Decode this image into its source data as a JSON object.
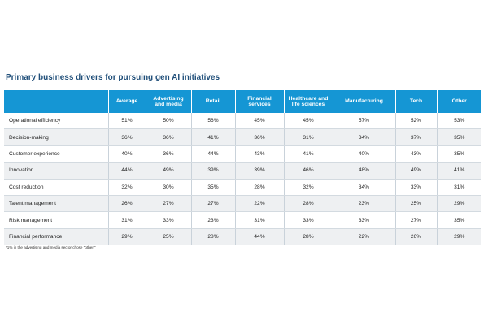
{
  "title": "Primary business drivers for pursuing gen AI initiatives",
  "columns": [
    "",
    "Average",
    "Advertising and media",
    "Retail",
    "Financial services",
    "Healthcare and life sciences",
    "Manufacturing",
    "Tech",
    "Other"
  ],
  "rows": [
    {
      "label": "Operational efficiency",
      "values": [
        "51%",
        "50%",
        "56%",
        "45%",
        "45%",
        "57%",
        "52%",
        "53%"
      ]
    },
    {
      "label": "Decision-making",
      "values": [
        "36%",
        "36%",
        "41%",
        "36%",
        "31%",
        "34%",
        "37%",
        "35%"
      ]
    },
    {
      "label": "Customer experience",
      "values": [
        "40%",
        "36%",
        "44%",
        "43%",
        "41%",
        "40%",
        "43%",
        "35%"
      ]
    },
    {
      "label": "Innovation",
      "values": [
        "44%",
        "49%",
        "39%",
        "39%",
        "46%",
        "48%",
        "49%",
        "41%"
      ]
    },
    {
      "label": "Cost reduction",
      "values": [
        "32%",
        "30%",
        "35%",
        "28%",
        "32%",
        "34%",
        "33%",
        "31%"
      ]
    },
    {
      "label": "Talent management",
      "values": [
        "26%",
        "27%",
        "27%",
        "22%",
        "28%",
        "23%",
        "25%",
        "29%"
      ]
    },
    {
      "label": "Risk management",
      "values": [
        "31%",
        "33%",
        "23%",
        "31%",
        "33%",
        "33%",
        "27%",
        "35%"
      ]
    },
    {
      "label": "Financial performance",
      "values": [
        "29%",
        "25%",
        "28%",
        "44%",
        "28%",
        "22%",
        "26%",
        "29%"
      ]
    }
  ],
  "footnote": "*1% in the advertising and media sector chose \"other.\"",
  "colors": {
    "title": "#1f4e79",
    "header_bg": "#1596d4",
    "header_text": "#ffffff",
    "row_alt_bg": "#eef0f2"
  }
}
